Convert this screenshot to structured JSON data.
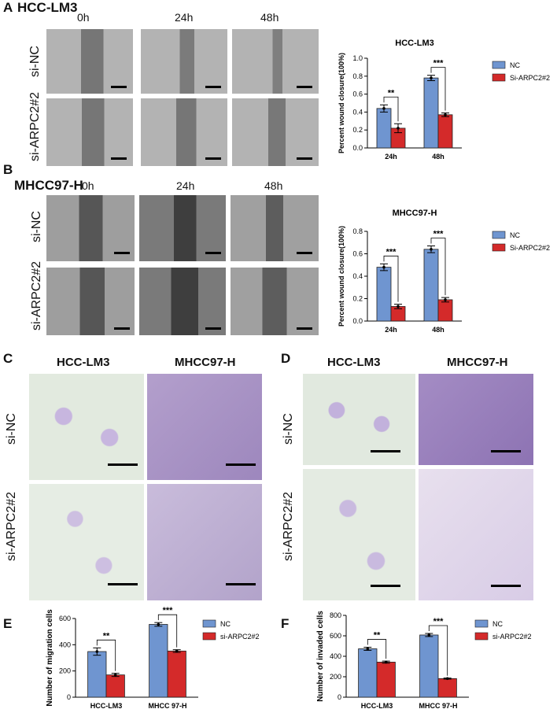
{
  "panels": {
    "A": {
      "letter": "A",
      "cell_line": "HCC-LM3",
      "times": [
        "0h",
        "24h",
        "48h"
      ],
      "rows": [
        "si-NC",
        "si-ARPC2#2"
      ]
    },
    "B": {
      "letter": "B",
      "cell_line": "MHCC97-H",
      "times": [
        "0h",
        "24h",
        "48h"
      ],
      "rows": [
        "si-NC",
        "si-ARPC2#2"
      ]
    },
    "C": {
      "letter": "C",
      "cols": [
        "HCC-LM3",
        "MHCC97-H"
      ],
      "rows": [
        "si-NC",
        "si-ARPC2#2"
      ]
    },
    "D": {
      "letter": "D",
      "cols": [
        "HCC-LM3",
        "MHCC97-H"
      ],
      "rows": [
        "si-NC",
        "si-ARPC2#2"
      ]
    },
    "E": {
      "letter": "E"
    },
    "F": {
      "letter": "F"
    }
  },
  "colors": {
    "nc": "#6f95d0",
    "si": "#d42a2a"
  },
  "chart_data": [
    {
      "id": "A",
      "type": "bar",
      "title": "HCC-LM3",
      "ylabel": "Percent wound closure(100%)",
      "categories": [
        "24h",
        "48h"
      ],
      "ylim": [
        0,
        1.0
      ],
      "yticks": [
        "0.0",
        "0.2",
        "0.4",
        "0.6",
        "0.8",
        "1.0"
      ],
      "legend": [
        "NC",
        "Si-ARPC2#2"
      ],
      "series": [
        {
          "name": "NC",
          "values": [
            0.44,
            0.78
          ],
          "err": [
            0.04,
            0.03
          ]
        },
        {
          "name": "Si-ARPC2#2",
          "values": [
            0.22,
            0.37
          ],
          "err": [
            0.05,
            0.02
          ]
        }
      ],
      "significance": [
        "**",
        "***"
      ]
    },
    {
      "id": "B",
      "type": "bar",
      "title": "MHCC97-H",
      "ylabel": "Percent wound closure(100%)",
      "categories": [
        "24h",
        "48h"
      ],
      "ylim": [
        0,
        0.8
      ],
      "yticks": [
        "0.0",
        "0.2",
        "0.4",
        "0.6",
        "0.8"
      ],
      "legend": [
        "NC",
        "Si-ARPC2#2"
      ],
      "series": [
        {
          "name": "NC",
          "values": [
            0.48,
            0.64
          ],
          "err": [
            0.03,
            0.03
          ]
        },
        {
          "name": "Si-ARPC2#2",
          "values": [
            0.13,
            0.19
          ],
          "err": [
            0.02,
            0.02
          ]
        }
      ],
      "significance": [
        "***",
        "***"
      ]
    },
    {
      "id": "E",
      "type": "bar",
      "title": "",
      "ylabel": "Number of migration cells",
      "categories": [
        "HCC-LM3",
        "MHCC 97-H"
      ],
      "ylim": [
        0,
        600
      ],
      "yticks": [
        "0",
        "200",
        "400",
        "600"
      ],
      "legend": [
        "NC",
        "si-ARPC2#2"
      ],
      "series": [
        {
          "name": "NC",
          "values": [
            348,
            555
          ],
          "err": [
            28,
            14
          ]
        },
        {
          "name": "si-ARPC2#2",
          "values": [
            170,
            352
          ],
          "err": [
            12,
            10
          ]
        }
      ],
      "significance": [
        "**",
        "***"
      ]
    },
    {
      "id": "F",
      "type": "bar",
      "title": "",
      "ylabel": "Number of invaded cells",
      "categories": [
        "HCC-LM3",
        "MHCC 97-H"
      ],
      "ylim": [
        0,
        800
      ],
      "yticks": [
        "0",
        "200",
        "400",
        "600",
        "800"
      ],
      "legend": [
        "NC",
        "si-ARPC2#2"
      ],
      "series": [
        {
          "name": "NC",
          "values": [
            473,
            608
          ],
          "err": [
            15,
            15
          ]
        },
        {
          "name": "si-ARPC2#2",
          "values": [
            343,
            182
          ],
          "err": [
            10,
            5
          ]
        }
      ],
      "significance": [
        "**",
        "***"
      ]
    }
  ]
}
